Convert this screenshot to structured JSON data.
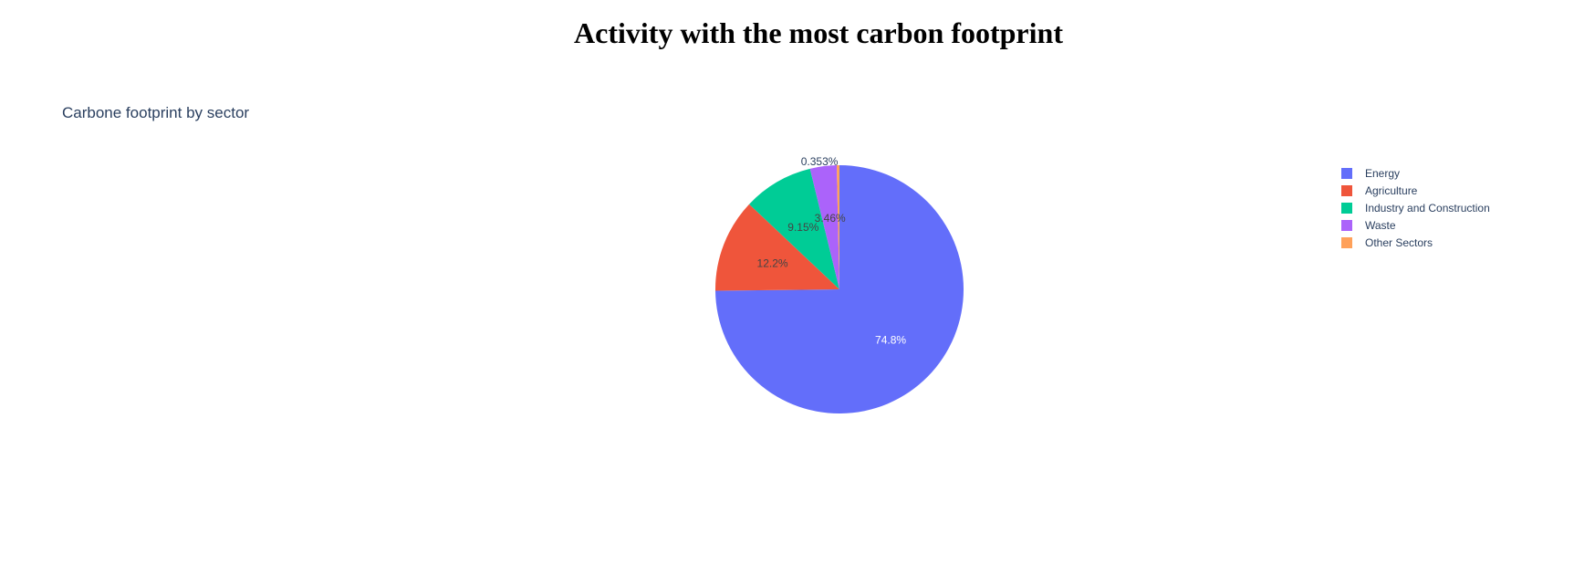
{
  "page": {
    "title": "Activity with the most carbon footprint"
  },
  "chart_data": {
    "type": "pie",
    "title": "Carbone footprint by sector",
    "labels": [
      "Energy",
      "Agriculture",
      "Industry and Construction",
      "Waste",
      "Other Sectors"
    ],
    "values": [
      74.8,
      12.2,
      9.15,
      3.46,
      0.353
    ],
    "value_labels": [
      "74.8%",
      "12.2%",
      "9.15%",
      "3.46%",
      "0.353%"
    ],
    "colors": [
      "#636efa",
      "#EF553B",
      "#00cc96",
      "#ab63fa",
      "#FFA15A"
    ],
    "label_colors": [
      "#ffffff",
      "#444444",
      "#444444",
      "#444444",
      "#2a3f5f"
    ],
    "direction": "clockwise",
    "start_angle_deg": 90,
    "legend_position": "top-right"
  }
}
